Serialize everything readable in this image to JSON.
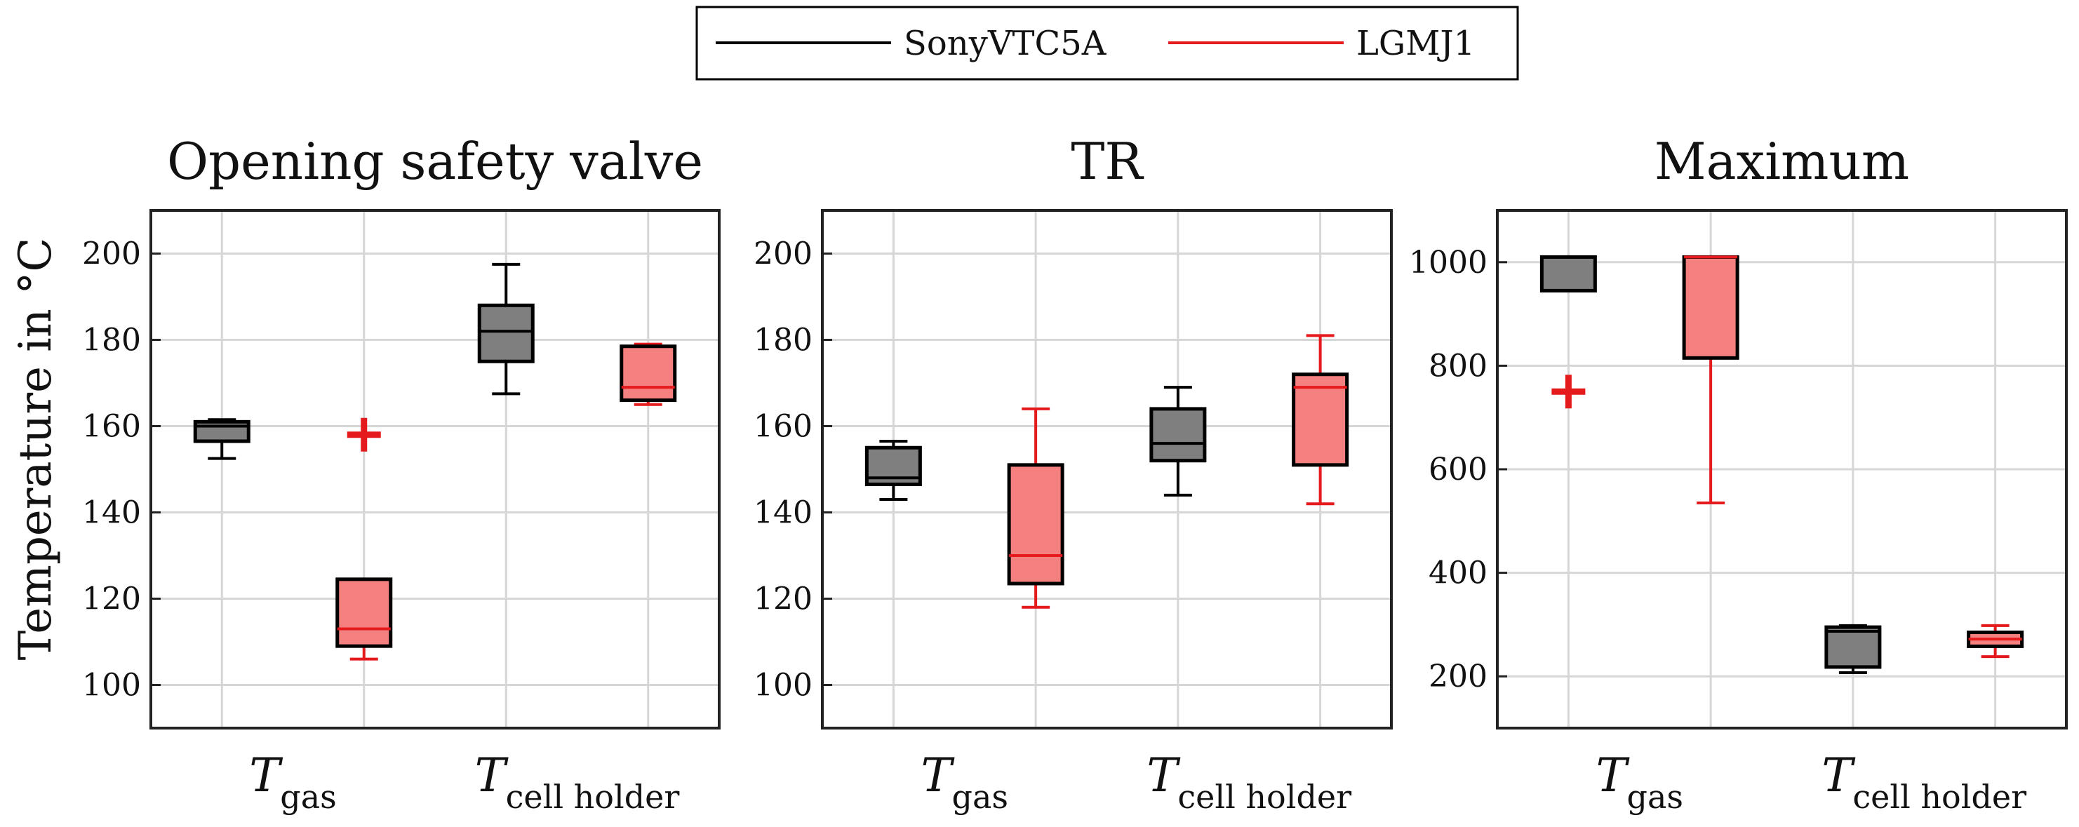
{
  "legend": {
    "entries": [
      {
        "name": "SonyVTC5A",
        "color": "#000000"
      },
      {
        "name": "LGMJ1",
        "color": "#e41a1c"
      }
    ]
  },
  "colors": {
    "sony_fill": "#7f7f7f",
    "lg_fill": "#f48080",
    "lg_line": "#e41a1c",
    "grid": "#d6d6d6",
    "axis": "#222222"
  },
  "ylabel": "Temperature in °C",
  "chart_data": [
    {
      "type": "boxplot",
      "title": "Opening safety valve",
      "ylabel": "Temperature in °C",
      "ylim": [
        90,
        210
      ],
      "yticks": [
        100,
        120,
        140,
        160,
        180,
        200
      ],
      "x_categories": [
        {
          "main": "T",
          "sub": "gas"
        },
        {
          "main": "T",
          "sub": "cell holder"
        }
      ],
      "series": [
        {
          "name": "SonyVTC5A",
          "category": "T_gas",
          "whisker_low": 152.5,
          "q1": 156.5,
          "median": 160,
          "q3": 161,
          "whisker_high": 161.5,
          "outliers": []
        },
        {
          "name": "LGMJ1",
          "category": "T_gas",
          "whisker_low": 106,
          "q1": 109,
          "median": 113,
          "q3": 124.5,
          "whisker_high": 124.5,
          "outliers": [
            158
          ]
        },
        {
          "name": "SonyVTC5A",
          "category": "T_cell holder",
          "whisker_low": 167.5,
          "q1": 175,
          "median": 182,
          "q3": 188,
          "whisker_high": 197.5,
          "outliers": []
        },
        {
          "name": "LGMJ1",
          "category": "T_cell holder",
          "whisker_low": 165,
          "q1": 166,
          "median": 169,
          "q3": 178.5,
          "whisker_high": 179,
          "outliers": []
        }
      ]
    },
    {
      "type": "boxplot",
      "title": "TR",
      "ylim": [
        90,
        210
      ],
      "yticks": [
        100,
        120,
        140,
        160,
        180,
        200
      ],
      "x_categories": [
        {
          "main": "T",
          "sub": "gas"
        },
        {
          "main": "T",
          "sub": "cell holder"
        }
      ],
      "series": [
        {
          "name": "SonyVTC5A",
          "category": "T_gas",
          "whisker_low": 143,
          "q1": 146.5,
          "median": 148,
          "q3": 155,
          "whisker_high": 156.5,
          "outliers": []
        },
        {
          "name": "LGMJ1",
          "category": "T_gas",
          "whisker_low": 118,
          "q1": 123.5,
          "median": 130,
          "q3": 151,
          "whisker_high": 164,
          "outliers": []
        },
        {
          "name": "SonyVTC5A",
          "category": "T_cell holder",
          "whisker_low": 144,
          "q1": 152,
          "median": 156,
          "q3": 164,
          "whisker_high": 169,
          "outliers": []
        },
        {
          "name": "LGMJ1",
          "category": "T_cell holder",
          "whisker_low": 142,
          "q1": 151,
          "median": 169,
          "q3": 172,
          "whisker_high": 181,
          "outliers": []
        }
      ]
    },
    {
      "type": "boxplot",
      "title": "Maximum",
      "ylim": [
        100,
        1100
      ],
      "yticks": [
        200,
        400,
        600,
        800,
        1000
      ],
      "x_categories": [
        {
          "main": "T",
          "sub": "gas"
        },
        {
          "main": "T",
          "sub": "cell holder"
        }
      ],
      "series": [
        {
          "name": "SonyVTC5A",
          "category": "T_gas",
          "whisker_low": 945,
          "q1": 945,
          "median": 1010,
          "q3": 1010,
          "whisker_high": 1010,
          "outliers": [
            750
          ]
        },
        {
          "name": "LGMJ1",
          "category": "T_gas",
          "whisker_low": 535,
          "q1": 815,
          "median": 1010,
          "q3": 1010,
          "whisker_high": 1010,
          "outliers": []
        },
        {
          "name": "SonyVTC5A",
          "category": "T_cell holder",
          "whisker_low": 207,
          "q1": 218,
          "median": 287,
          "q3": 295,
          "whisker_high": 298,
          "outliers": []
        },
        {
          "name": "LGMJ1",
          "category": "T_cell holder",
          "whisker_low": 238,
          "q1": 258,
          "median": 272,
          "q3": 285,
          "whisker_high": 298,
          "outliers": []
        }
      ]
    }
  ]
}
